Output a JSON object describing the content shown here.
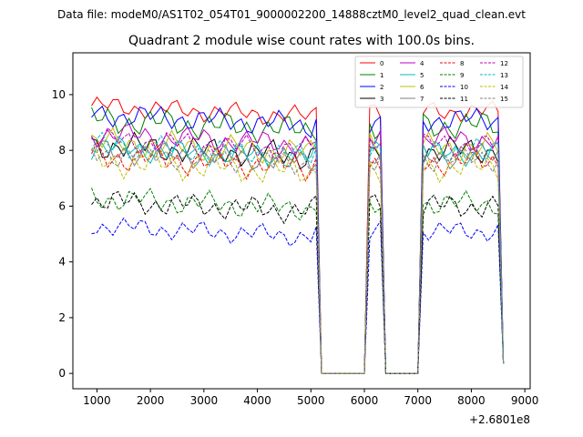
{
  "chart_data": {
    "type": "line",
    "suptitle": "Data file: modeM0/AS1T02_054T01_9000002200_14888cztM0_level2_quad_clean.evt",
    "title": "Quadrant 2 module wise count rates with 100.0s bins.",
    "xlabel": "",
    "ylabel": "",
    "x_offset_label": "+2.6801e8",
    "xlim": [
      550,
      9100
    ],
    "ylim": [
      -0.55,
      11.5
    ],
    "xticks": [
      1000,
      2000,
      3000,
      4000,
      5000,
      6000,
      7000,
      8000,
      9000
    ],
    "yticks": [
      0,
      2,
      4,
      6,
      8,
      10
    ],
    "grid": false,
    "legend_position": "top-right",
    "segments": [
      {
        "start": 900,
        "end": 5100
      },
      {
        "start": 6100,
        "end": 6300
      },
      {
        "start": 7100,
        "end": 8600
      }
    ],
    "series": [
      {
        "name": "0",
        "color": "#ff0000",
        "dash": "solid",
        "base": 9.4,
        "amp": 0.25
      },
      {
        "name": "1",
        "color": "#008000",
        "dash": "solid",
        "base": 8.9,
        "amp": 0.35
      },
      {
        "name": "2",
        "color": "#0000ff",
        "dash": "solid",
        "base": 9.1,
        "amp": 0.3
      },
      {
        "name": "3",
        "color": "#000000",
        "dash": "solid",
        "base": 8.0,
        "amp": 0.35
      },
      {
        "name": "4",
        "color": "#bf00bf",
        "dash": "solid",
        "base": 8.4,
        "amp": 0.3
      },
      {
        "name": "5",
        "color": "#00bfbf",
        "dash": "solid",
        "base": 7.9,
        "amp": 0.3
      },
      {
        "name": "6",
        "color": "#bfbf00",
        "dash": "solid",
        "base": 8.1,
        "amp": 0.35
      },
      {
        "name": "7",
        "color": "#808080",
        "dash": "solid",
        "base": 7.8,
        "amp": 0.3
      },
      {
        "name": "8",
        "color": "#ff0000",
        "dash": "dashed",
        "base": 7.6,
        "amp": 0.35
      },
      {
        "name": "9",
        "color": "#008000",
        "dash": "dashed",
        "base": 6.1,
        "amp": 0.3
      },
      {
        "name": "10",
        "color": "#0000ff",
        "dash": "dashed",
        "base": 5.1,
        "amp": 0.25
      },
      {
        "name": "11",
        "color": "#000000",
        "dash": "dashed",
        "base": 6.0,
        "amp": 0.3
      },
      {
        "name": "12",
        "color": "#bf00bf",
        "dash": "dashed",
        "base": 8.2,
        "amp": 0.3
      },
      {
        "name": "13",
        "color": "#00bfbf",
        "dash": "dashed",
        "base": 8.0,
        "amp": 0.3
      },
      {
        "name": "14",
        "color": "#bfbf00",
        "dash": "dashed",
        "base": 7.4,
        "amp": 0.35
      },
      {
        "name": "15",
        "color": "#808080",
        "dash": "dashed",
        "base": 7.7,
        "amp": 0.3
      }
    ]
  }
}
